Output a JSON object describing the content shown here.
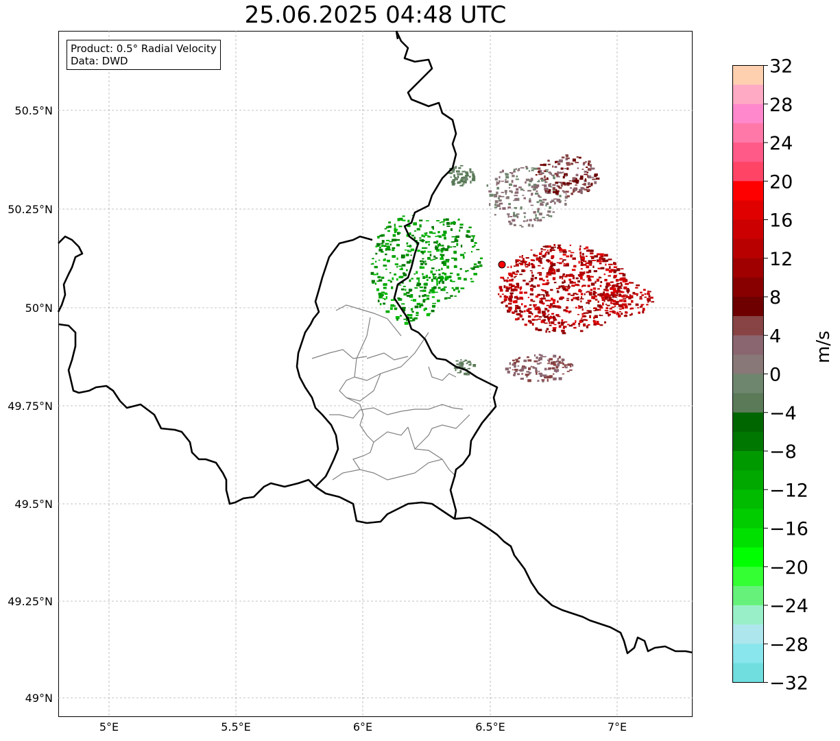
{
  "title": "25.06.2025 04:48 UTC",
  "info": {
    "product": "Product: 0.5° Radial Velocity",
    "data_source": "Data: DWD"
  },
  "axes": {
    "lon_ticks": [
      "5°E",
      "5.5°E",
      "6°E",
      "6.5°E",
      "7°E"
    ],
    "lat_ticks": [
      "50.5°N",
      "50.25°N",
      "50°N",
      "49.75°N",
      "49.5°N",
      "49.25°N",
      "49°N"
    ]
  },
  "colorbar": {
    "unit": "m/s",
    "min": -32,
    "max": 32,
    "tick_labels": [
      "32",
      "28",
      "24",
      "20",
      "16",
      "12",
      "8",
      "4",
      "0",
      "−4",
      "−8",
      "−12",
      "−16",
      "−20",
      "−24",
      "−28",
      "−32"
    ],
    "colors_top_to_bottom": [
      "#ffd0b0",
      "#ffaac5",
      "#ff88cc",
      "#ff78a8",
      "#ff5a88",
      "#ff4466",
      "#ff0000",
      "#e00000",
      "#cc0000",
      "#b80000",
      "#a00000",
      "#880000",
      "#6e0000",
      "#884444",
      "#8a6670",
      "#887878",
      "#6e866e",
      "#5a7a58",
      "#006600",
      "#007700",
      "#009900",
      "#00a800",
      "#00bb00",
      "#00cc00",
      "#00e000",
      "#00ff00",
      "#33ff33",
      "#66f27a",
      "#99f0c8",
      "#aee6ee",
      "#88e6ec",
      "#70dede"
    ]
  },
  "radar_site": {
    "color": "#ff0000"
  },
  "colors": {
    "border": "#000000",
    "admin_lines": "#808080",
    "grid": "#b0b0b0"
  }
}
